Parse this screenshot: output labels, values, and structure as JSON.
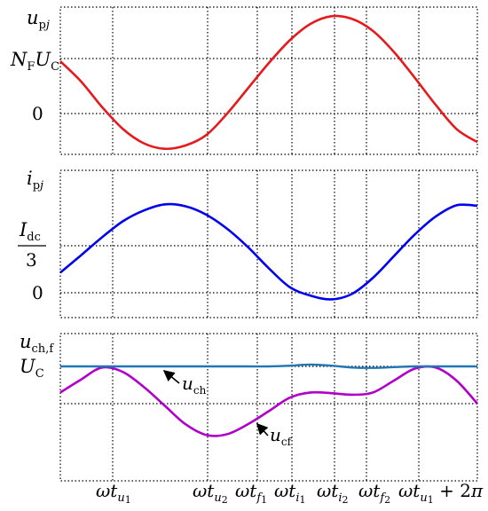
{
  "chart_data": [
    {
      "type": "line",
      "ylabel": "u_pj",
      "ytick_labels": [
        "N_F U_C",
        "0"
      ],
      "x_grid_labels": [
        "ωt_u1",
        "ωt_u2",
        "ωt_f1",
        "ωt_i1",
        "ωt_i2",
        "ωt_f2",
        "ωt_u1+2π"
      ],
      "series": [
        {
          "color": "#e41a1c",
          "x": [
            0,
            0.5,
            1,
            1.5,
            2,
            2.5,
            3,
            3.5,
            4,
            4.5,
            5,
            5.5,
            6,
            6.5,
            7,
            7.5,
            8,
            8.5,
            9,
            9.5,
            10
          ],
          "y": [
            0.95,
            0.58,
            0.12,
            -0.28,
            -0.54,
            -0.64,
            -0.58,
            -0.39,
            0.0,
            0.46,
            0.92,
            1.33,
            1.63,
            1.77,
            1.72,
            1.5,
            1.12,
            0.65,
            0.16,
            -0.28,
            -0.52
          ]
        }
      ]
    },
    {
      "type": "line",
      "ylabel": "i_pj",
      "ytick_labels": [
        "I_dc/3",
        "0"
      ],
      "series": [
        {
          "color": "#0000ee",
          "x": [
            0,
            0.5,
            1,
            1.5,
            2,
            2.5,
            3,
            3.5,
            4,
            4.5,
            5,
            5.5,
            6,
            6.5,
            7,
            7.5,
            8,
            8.5,
            9,
            9.5,
            10
          ],
          "y": [
            0.43,
            0.8,
            1.18,
            1.52,
            1.75,
            1.88,
            1.84,
            1.66,
            1.36,
            0.97,
            0.52,
            0.12,
            -0.06,
            -0.14,
            -0.02,
            0.32,
            0.78,
            1.24,
            1.62,
            1.86,
            1.85
          ]
        }
      ]
    },
    {
      "type": "line",
      "ylabel": "u_ch,f",
      "ytick_labels": [
        "U_C"
      ],
      "annotations": [
        "u_ch",
        "u_cf"
      ],
      "series": [
        {
          "name": "u_ch",
          "color": "#1f77b4",
          "x": [
            0,
            0.5,
            1,
            1.5,
            2,
            2.5,
            3,
            3.5,
            4,
            4.5,
            5,
            5.5,
            6,
            6.5,
            7,
            7.5,
            8,
            8.5,
            9,
            9.5,
            10
          ],
          "y": [
            1.0,
            1.0,
            1.0,
            1.0,
            1.0,
            1.0,
            1.0,
            1.0,
            1.0,
            1.0,
            1.0,
            1.02,
            1.05,
            1.02,
            0.97,
            0.96,
            0.98,
            1.0,
            1.0,
            1.0,
            1.0
          ]
        },
        {
          "name": "u_cf",
          "color": "#b000c8",
          "x": [
            0,
            0.5,
            1,
            1.5,
            2,
            2.5,
            3,
            3.5,
            4,
            4.5,
            5,
            5.5,
            6,
            6.5,
            7,
            7.5,
            8,
            8.5,
            9,
            9.5,
            10
          ],
          "y": [
            0.3,
            0.65,
            0.97,
            0.85,
            0.45,
            -0.05,
            -0.55,
            -0.84,
            -0.82,
            -0.55,
            -0.2,
            0.16,
            0.3,
            0.28,
            0.24,
            0.3,
            0.62,
            0.94,
            0.97,
            0.62,
            0.0
          ]
        }
      ]
    }
  ]
}
